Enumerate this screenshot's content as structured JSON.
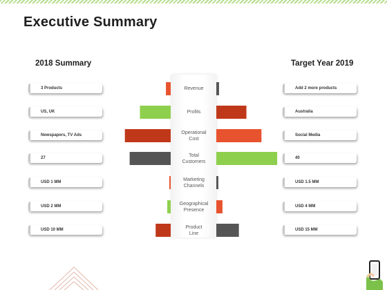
{
  "title": "Executive Summary",
  "left_header": "2018 Summary",
  "right_header": "Target Year 2019",
  "left_items": [
    "3 Products",
    "US, UK",
    "Newspapers, TV Ads",
    "27",
    "USD 1 MM",
    "USD 2 MM",
    "USD 10 MM"
  ],
  "right_items": [
    "Add 2 more products",
    "Australia",
    "Social Media",
    "40",
    "USD 1.5 MM",
    "USD 4 MM",
    "USD 15 MM"
  ],
  "categories": [
    {
      "line1": "Revenue",
      "line2": ""
    },
    {
      "line1": "Profits",
      "line2": ""
    },
    {
      "line1": "Operational",
      "line2": "Cost"
    },
    {
      "line1": "Total",
      "line2": "Customers"
    },
    {
      "line1": "Marketing",
      "line2": "Channels"
    },
    {
      "line1": "Geographical",
      "line2": "Presence"
    },
    {
      "line1": "Product",
      "line2": "Line"
    }
  ],
  "chart_data": {
    "type": "bar",
    "series": [
      {
        "values": [
          7,
          45,
          67,
          60,
          2,
          5,
          22
        ],
        "colors": [
          "#e8532f",
          "#8fcf4e",
          "#c0381a",
          "#555555",
          "#e8532f",
          "#8fcf4e",
          "#c0381a"
        ]
      },
      {
        "values": [
          4,
          44,
          66,
          89,
          3,
          9,
          33
        ],
        "colors": [
          "#555555",
          "#c0381a",
          "#e8532f",
          "#8fcf4e",
          "#555555",
          "#e8532f",
          "#555555"
        ]
      }
    ]
  },
  "icons": [
    "hand-phone-icon",
    "triangle-lines-decoration"
  ]
}
